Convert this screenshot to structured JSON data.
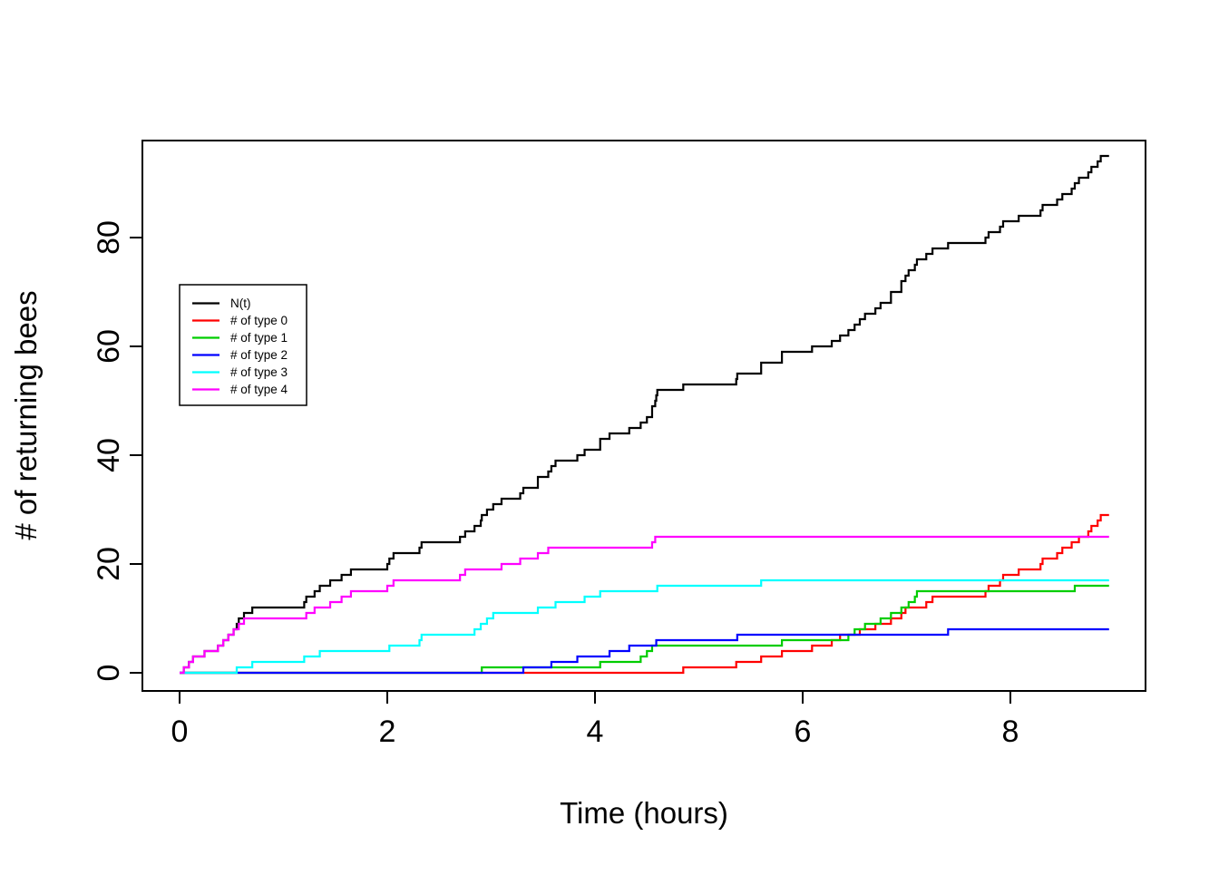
{
  "figure": {
    "background": "#ffffff"
  },
  "chart_data": {
    "type": "line",
    "subtype": "step-counting-process",
    "title": "",
    "xlabel": "Time (hours)",
    "ylabel": "# of returning bees",
    "xlim": [
      -0.36,
      9.3
    ],
    "ylim": [
      -3.3,
      97.8
    ],
    "x_ticks": [
      0,
      2,
      4,
      6,
      8
    ],
    "y_ticks": [
      0,
      20,
      40,
      60,
      80
    ],
    "grid": false,
    "legend_position": "upper-left-inside",
    "x_start": 0,
    "x_end": 8.95,
    "note": "All curves are right-continuous step functions starting at 0 at t=0; each 'jumps' entry is a time (hours) where the count increments by 1. N(t) is the total count: the union of all type jump times (final value 95).",
    "series": [
      {
        "name": "N(t)",
        "color": "#000000",
        "derived": "sum-of-all-types",
        "final_value": 95
      },
      {
        "name": "# of type 0",
        "color": "#ff0000",
        "final_value": 29,
        "jumps": [
          4.85,
          5.36,
          5.6,
          5.8,
          6.09,
          6.28,
          6.36,
          6.55,
          6.7,
          6.85,
          6.95,
          6.99,
          7.19,
          7.25,
          7.76,
          7.79,
          7.9,
          7.93,
          8.08,
          8.29,
          8.31,
          8.45,
          8.5,
          8.59,
          8.66,
          8.75,
          8.78,
          8.84,
          8.87
        ]
      },
      {
        "name": "# of type 1",
        "color": "#00cd00",
        "final_value": 16,
        "jumps": [
          2.91,
          4.05,
          4.44,
          4.5,
          4.55,
          5.8,
          6.44,
          6.5,
          6.6,
          6.75,
          6.85,
          6.95,
          7.02,
          7.08,
          7.1,
          8.62
        ]
      },
      {
        "name": "# of type 2",
        "color": "#0000ff",
        "final_value": 8,
        "jumps": [
          3.31,
          3.58,
          3.83,
          4.14,
          4.33,
          4.59,
          5.37,
          7.4
        ]
      },
      {
        "name": "# of type 3",
        "color": "#00ffff",
        "final_value": 17,
        "jumps": [
          0.55,
          0.7,
          1.2,
          1.35,
          2.02,
          2.31,
          2.33,
          2.84,
          2.9,
          2.96,
          3.02,
          3.45,
          3.62,
          3.9,
          4.05,
          4.6,
          5.6
        ]
      },
      {
        "name": "# of type 4",
        "color": "#ff00ff",
        "final_value": 25,
        "jumps": [
          0.04,
          0.09,
          0.13,
          0.24,
          0.37,
          0.42,
          0.47,
          0.52,
          0.57,
          0.62,
          1.22,
          1.3,
          1.45,
          1.56,
          1.65,
          2.0,
          2.06,
          2.7,
          2.75,
          3.1,
          3.28,
          3.45,
          3.55,
          4.55,
          4.58
        ]
      }
    ]
  },
  "legend": {
    "entries": [
      {
        "label": "N(t)",
        "color": "#000000"
      },
      {
        "label": "# of type 0",
        "color": "#ff0000"
      },
      {
        "label": "# of type 1",
        "color": "#00cd00"
      },
      {
        "label": "# of type 2",
        "color": "#0000ff"
      },
      {
        "label": "# of type 3",
        "color": "#00ffff"
      },
      {
        "label": "# of type 4",
        "color": "#ff00ff"
      }
    ]
  }
}
